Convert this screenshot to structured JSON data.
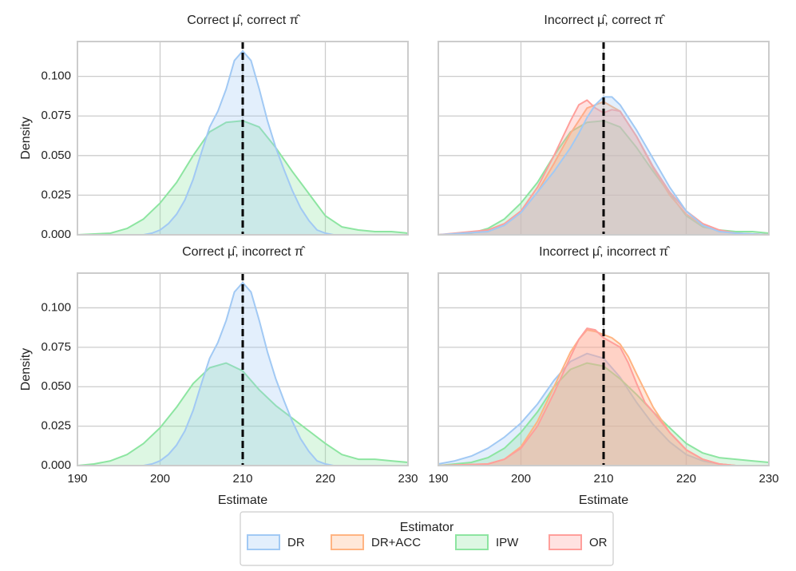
{
  "legend": {
    "title": "Estimator",
    "placement": "bottom-center",
    "entries": [
      {
        "name": "DR",
        "color": "#a1c9f4"
      },
      {
        "name": "DR+ACC",
        "color": "#ffb482"
      },
      {
        "name": "IPW",
        "color": "#8de5a1"
      },
      {
        "name": "OR",
        "color": "#ff9f9b"
      }
    ]
  },
  "chart_data": [
    {
      "type": "area",
      "title": "Correct μ̂, correct π̂",
      "xlabel": "",
      "ylabel": "Density",
      "xlim": [
        190,
        230
      ],
      "ylim": [
        0,
        0.122
      ],
      "xticks": [
        "190",
        "200",
        "210",
        "220",
        "230"
      ],
      "yticks": [
        "0.000",
        "0.025",
        "0.050",
        "0.075",
        "0.100"
      ],
      "show_xticklabels": false,
      "show_yticklabels": true,
      "reference_line": 210,
      "series": [
        {
          "name": "IPW",
          "x": [
            190,
            194,
            196,
            198,
            200,
            202,
            204,
            206,
            208,
            210,
            212,
            214,
            216,
            218,
            220,
            222,
            224,
            226,
            228,
            230
          ],
          "y": [
            0,
            0.001,
            0.004,
            0.01,
            0.02,
            0.033,
            0.05,
            0.065,
            0.071,
            0.072,
            0.068,
            0.055,
            0.04,
            0.026,
            0.012,
            0.005,
            0.003,
            0.002,
            0.002,
            0.001
          ]
        },
        {
          "name": "DR",
          "x": [
            190,
            198,
            199,
            200,
            201,
            202,
            203,
            204,
            205,
            206,
            207,
            208,
            209,
            210,
            211,
            212,
            213,
            214,
            215,
            216,
            217,
            218,
            219,
            220,
            221,
            230
          ],
          "y": [
            0,
            0,
            0.001,
            0.003,
            0.007,
            0.013,
            0.022,
            0.035,
            0.052,
            0.068,
            0.078,
            0.092,
            0.11,
            0.116,
            0.11,
            0.092,
            0.072,
            0.055,
            0.041,
            0.028,
            0.017,
            0.009,
            0.003,
            0.001,
            0,
            0
          ]
        }
      ]
    },
    {
      "type": "area",
      "title": "Incorrect μ̂, correct π̂",
      "xlabel": "",
      "ylabel": "",
      "xlim": [
        190,
        230
      ],
      "ylim": [
        0,
        0.122
      ],
      "xticks": [
        "190",
        "200",
        "210",
        "220",
        "230"
      ],
      "yticks": [
        "0.000",
        "0.025",
        "0.050",
        "0.075",
        "0.100"
      ],
      "show_xticklabels": false,
      "show_yticklabels": false,
      "reference_line": 210,
      "series": [
        {
          "name": "IPW",
          "x": [
            190,
            194,
            196,
            198,
            200,
            202,
            204,
            206,
            208,
            210,
            212,
            214,
            216,
            218,
            220,
            222,
            224,
            226,
            228,
            230
          ],
          "y": [
            0,
            0.001,
            0.004,
            0.01,
            0.02,
            0.033,
            0.05,
            0.065,
            0.071,
            0.072,
            0.068,
            0.055,
            0.04,
            0.026,
            0.012,
            0.005,
            0.003,
            0.002,
            0.002,
            0.001
          ]
        },
        {
          "name": "DR+ACC",
          "x": [
            190,
            196,
            198,
            200,
            202,
            204,
            206,
            208,
            210,
            212,
            214,
            216,
            218,
            220,
            222,
            224,
            226,
            230
          ],
          "y": [
            0,
            0.002,
            0.006,
            0.014,
            0.027,
            0.045,
            0.064,
            0.08,
            0.084,
            0.078,
            0.062,
            0.042,
            0.025,
            0.013,
            0.006,
            0.002,
            0.001,
            0
          ]
        },
        {
          "name": "OR",
          "x": [
            190,
            196,
            198,
            200,
            202,
            204,
            206,
            207,
            208,
            209,
            210,
            211,
            212,
            214,
            216,
            218,
            220,
            222,
            224,
            226,
            230
          ],
          "y": [
            0,
            0.003,
            0.007,
            0.015,
            0.03,
            0.05,
            0.072,
            0.082,
            0.085,
            0.08,
            0.077,
            0.079,
            0.078,
            0.062,
            0.043,
            0.027,
            0.015,
            0.007,
            0.003,
            0.001,
            0
          ]
        },
        {
          "name": "DR",
          "x": [
            190,
            196,
            198,
            200,
            202,
            204,
            206,
            207,
            208,
            209,
            210,
            211,
            212,
            213,
            214,
            216,
            218,
            220,
            222,
            224,
            226,
            230
          ],
          "y": [
            0,
            0.002,
            0.006,
            0.014,
            0.027,
            0.04,
            0.055,
            0.064,
            0.074,
            0.082,
            0.087,
            0.087,
            0.082,
            0.074,
            0.066,
            0.048,
            0.03,
            0.015,
            0.006,
            0.002,
            0.001,
            0
          ]
        }
      ]
    },
    {
      "type": "area",
      "title": "Correct μ̂, incorrect π̂",
      "xlabel": "Estimate",
      "ylabel": "Density",
      "xlim": [
        190,
        230
      ],
      "ylim": [
        0,
        0.122
      ],
      "xticks": [
        "190",
        "200",
        "210",
        "220",
        "230"
      ],
      "yticks": [
        "0.000",
        "0.025",
        "0.050",
        "0.075",
        "0.100"
      ],
      "show_xticklabels": true,
      "show_yticklabels": true,
      "reference_line": 210,
      "series": [
        {
          "name": "IPW",
          "x": [
            190,
            192,
            194,
            196,
            198,
            200,
            202,
            204,
            206,
            208,
            210,
            212,
            214,
            216,
            218,
            220,
            222,
            224,
            226,
            228,
            230
          ],
          "y": [
            0,
            0.001,
            0.003,
            0.007,
            0.014,
            0.024,
            0.037,
            0.052,
            0.062,
            0.065,
            0.06,
            0.048,
            0.038,
            0.03,
            0.022,
            0.014,
            0.007,
            0.004,
            0.004,
            0.003,
            0.002
          ]
        },
        {
          "name": "DR",
          "x": [
            190,
            198,
            199,
            200,
            201,
            202,
            203,
            204,
            205,
            206,
            207,
            208,
            209,
            210,
            211,
            212,
            213,
            214,
            215,
            216,
            217,
            218,
            219,
            220,
            221,
            230
          ],
          "y": [
            0,
            0,
            0.001,
            0.003,
            0.007,
            0.013,
            0.022,
            0.035,
            0.052,
            0.068,
            0.078,
            0.092,
            0.11,
            0.116,
            0.11,
            0.092,
            0.072,
            0.055,
            0.041,
            0.028,
            0.017,
            0.009,
            0.003,
            0.001,
            0,
            0
          ]
        }
      ]
    },
    {
      "type": "area",
      "title": "Incorrect μ̂, incorrect π̂",
      "xlabel": "Estimate",
      "ylabel": "",
      "xlim": [
        190,
        230
      ],
      "ylim": [
        0,
        0.122
      ],
      "xticks": [
        "190",
        "200",
        "210",
        "220",
        "230"
      ],
      "yticks": [
        "0.000",
        "0.025",
        "0.050",
        "0.075",
        "0.100"
      ],
      "show_xticklabels": true,
      "show_yticklabels": false,
      "reference_line": 210,
      "series": [
        {
          "name": "DR",
          "x": [
            190,
            192,
            194,
            196,
            198,
            200,
            202,
            204,
            206,
            208,
            210,
            212,
            214,
            216,
            218,
            220,
            222,
            224,
            226,
            228,
            230
          ],
          "y": [
            0.001,
            0.003,
            0.006,
            0.011,
            0.018,
            0.027,
            0.039,
            0.054,
            0.066,
            0.071,
            0.068,
            0.056,
            0.04,
            0.026,
            0.015,
            0.007,
            0.003,
            0.001,
            0,
            0,
            0
          ]
        },
        {
          "name": "IPW",
          "x": [
            190,
            194,
            196,
            198,
            200,
            202,
            204,
            206,
            208,
            210,
            212,
            214,
            216,
            218,
            220,
            222,
            224,
            226,
            228,
            230
          ],
          "y": [
            0,
            0.002,
            0.005,
            0.011,
            0.021,
            0.034,
            0.05,
            0.061,
            0.065,
            0.063,
            0.055,
            0.045,
            0.034,
            0.024,
            0.014,
            0.008,
            0.005,
            0.004,
            0.003,
            0.002
          ]
        },
        {
          "name": "DR+ACC",
          "x": [
            190,
            196,
            198,
            200,
            202,
            204,
            206,
            207,
            208,
            209,
            210,
            211,
            212,
            213,
            214,
            216,
            218,
            220,
            222,
            224,
            226,
            230
          ],
          "y": [
            0,
            0.001,
            0.004,
            0.012,
            0.028,
            0.05,
            0.072,
            0.08,
            0.086,
            0.085,
            0.083,
            0.081,
            0.077,
            0.069,
            0.058,
            0.037,
            0.021,
            0.01,
            0.004,
            0.001,
            0,
            0
          ]
        },
        {
          "name": "OR",
          "x": [
            190,
            196,
            198,
            200,
            202,
            204,
            206,
            207,
            208,
            209,
            210,
            211,
            212,
            213,
            214,
            215,
            216,
            218,
            220,
            222,
            224,
            226,
            230
          ],
          "y": [
            0,
            0.001,
            0.004,
            0.011,
            0.025,
            0.046,
            0.069,
            0.08,
            0.087,
            0.086,
            0.081,
            0.078,
            0.075,
            0.065,
            0.052,
            0.04,
            0.034,
            0.021,
            0.01,
            0.004,
            0.001,
            0,
            0
          ]
        }
      ]
    }
  ]
}
